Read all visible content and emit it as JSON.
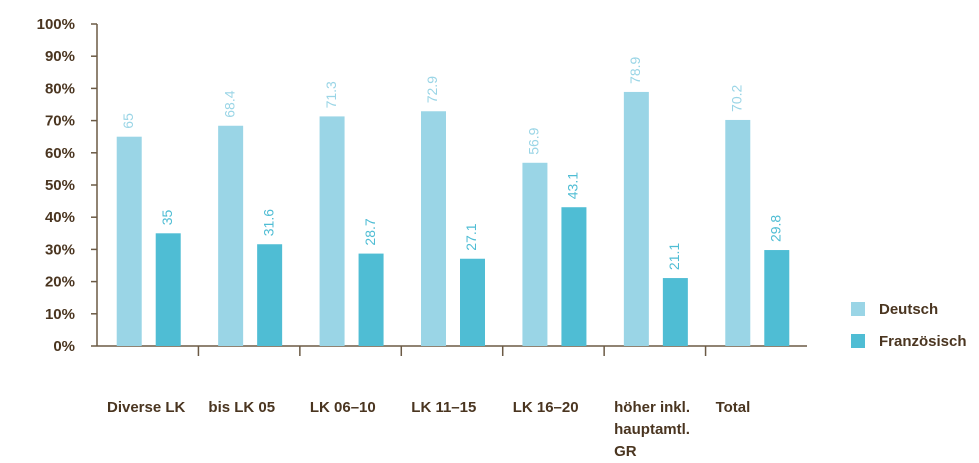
{
  "chart_data": {
    "type": "bar",
    "categories": [
      [
        "Diverse LK"
      ],
      [
        "bis LK 05"
      ],
      [
        "LK 06–10"
      ],
      [
        "LK 11–15"
      ],
      [
        "LK 16–20"
      ],
      [
        "höher inkl.",
        "hauptamtl.",
        "GR"
      ],
      [
        "Total"
      ]
    ],
    "series": [
      {
        "name": "Deutsch",
        "color": "#9ad5e6",
        "values": [
          65,
          68.4,
          71.3,
          72.9,
          56.9,
          78.9,
          70.2
        ]
      },
      {
        "name": "Französisch",
        "color": "#4fbdd4",
        "values": [
          35,
          31.6,
          28.7,
          27.1,
          43.1,
          21.1,
          29.8
        ]
      }
    ],
    "y_ticks": [
      "0%",
      "10%",
      "20%",
      "30%",
      "40%",
      "50%",
      "60%",
      "70%",
      "80%",
      "90%",
      "100%"
    ],
    "ylim": [
      0,
      100
    ],
    "grid": false,
    "legend_position": "right",
    "axis_color": "#6b5a45",
    "text_color": "#4a3520"
  }
}
